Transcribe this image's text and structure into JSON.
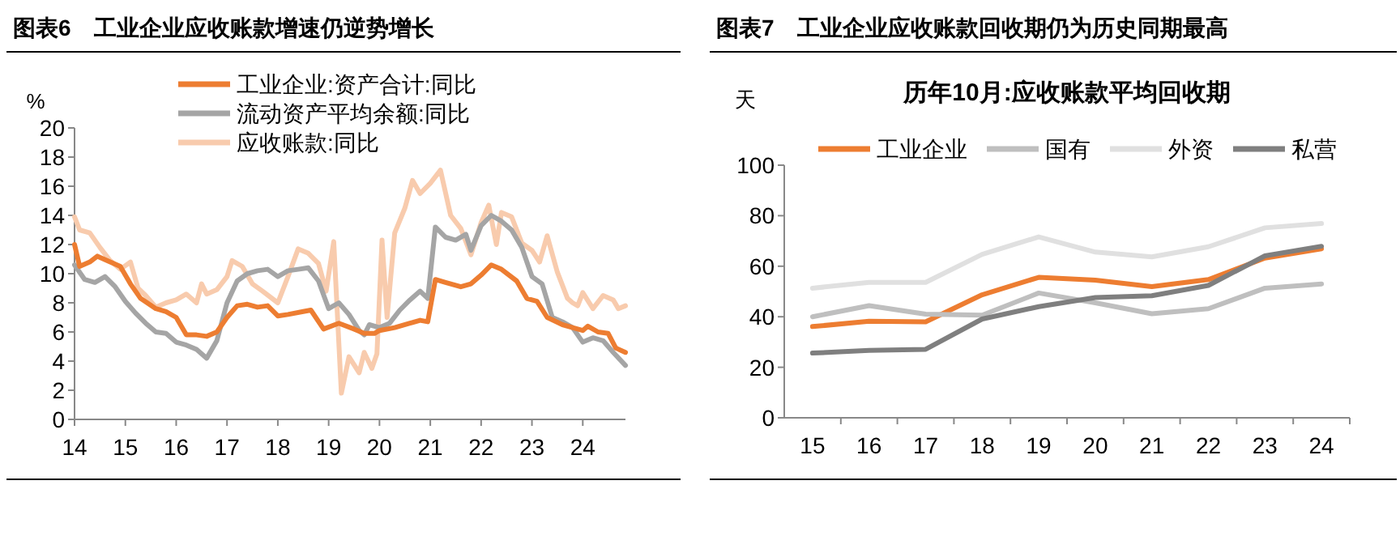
{
  "chart_data": [
    {
      "type": "line",
      "title": "图表6　工业企业应收账款增速仍逆势增长",
      "ylabel": "%",
      "legend": "top",
      "grid": false,
      "xlim": [
        14,
        24.84
      ],
      "xticks": [
        14,
        15,
        16,
        17,
        18,
        19,
        20,
        21,
        22,
        23,
        24
      ],
      "ylim": [
        0,
        20
      ],
      "yticks": [
        0,
        2,
        4,
        6,
        8,
        10,
        12,
        14,
        16,
        18,
        20
      ],
      "series": [
        {
          "name": "工业企业:资产合计:同比",
          "color": "#ed7d31",
          "x": [
            14.0,
            14.1,
            14.3,
            14.45,
            14.7,
            14.9,
            15.1,
            15.3,
            15.6,
            15.8,
            16.0,
            16.2,
            16.4,
            16.6,
            16.8,
            17.0,
            17.2,
            17.4,
            17.6,
            17.8,
            18.0,
            18.2,
            18.5,
            18.65,
            18.9,
            19.2,
            19.5,
            19.7,
            19.9,
            20.0,
            20.3,
            20.6,
            20.8,
            20.95,
            21.1,
            21.3,
            21.6,
            21.8,
            22.0,
            22.2,
            22.4,
            22.7,
            22.9,
            23.1,
            23.3,
            23.6,
            23.8,
            24.0,
            24.1,
            24.3,
            24.5,
            24.65,
            24.84
          ],
          "values": [
            12,
            10.5,
            10.8,
            11.2,
            10.8,
            10.5,
            9.3,
            8.3,
            7.6,
            7.4,
            7.0,
            5.8,
            5.8,
            5.7,
            6.0,
            7.0,
            7.8,
            7.9,
            7.7,
            7.8,
            7.1,
            7.2,
            7.4,
            7.5,
            6.2,
            6.6,
            6.2,
            5.9,
            5.9,
            6.1,
            6.3,
            6.6,
            6.8,
            6.7,
            9.6,
            9.4,
            9.1,
            9.3,
            9.9,
            10.6,
            10.3,
            9.5,
            8.3,
            8.1,
            7.0,
            6.5,
            6.3,
            6.1,
            6.4,
            6.0,
            5.9,
            4.9,
            4.6
          ]
        },
        {
          "name": "流动资产平均余额:同比",
          "color": "#a5a5a5",
          "x": [
            14.0,
            14.2,
            14.4,
            14.6,
            14.8,
            15.0,
            15.2,
            15.4,
            15.6,
            15.8,
            16.0,
            16.2,
            16.4,
            16.6,
            16.8,
            17.0,
            17.2,
            17.4,
            17.6,
            17.8,
            18.0,
            18.2,
            18.4,
            18.6,
            18.8,
            19.0,
            19.2,
            19.4,
            19.6,
            19.7,
            19.8,
            20.0,
            20.2,
            20.4,
            20.6,
            20.8,
            20.95,
            21.1,
            21.3,
            21.5,
            21.7,
            21.8,
            22.0,
            22.2,
            22.4,
            22.6,
            22.8,
            23.0,
            23.2,
            23.4,
            23.6,
            23.8,
            24.0,
            24.2,
            24.4,
            24.6,
            24.84
          ],
          "values": [
            10.6,
            9.6,
            9.4,
            9.8,
            9.1,
            8.1,
            7.3,
            6.6,
            6.0,
            5.9,
            5.3,
            5.1,
            4.8,
            4.2,
            5.4,
            8.0,
            9.5,
            10.0,
            10.2,
            10.3,
            9.8,
            10.2,
            10.3,
            10.4,
            9.5,
            7.6,
            8.0,
            7.2,
            6.1,
            5.8,
            6.5,
            6.3,
            6.6,
            7.5,
            8.2,
            8.8,
            8.3,
            13.2,
            12.5,
            12.3,
            12.7,
            11.6,
            13.3,
            14.0,
            13.6,
            13.0,
            11.8,
            9.8,
            9.3,
            7.0,
            6.7,
            6.3,
            5.3,
            5.6,
            5.4,
            4.6,
            3.7
          ]
        },
        {
          "name": "应收账款:同比",
          "color": "#f8cbad",
          "x": [
            14.0,
            14.1,
            14.3,
            14.5,
            14.7,
            14.9,
            15.1,
            15.25,
            15.4,
            15.6,
            15.8,
            16.0,
            16.2,
            16.4,
            16.5,
            16.6,
            16.8,
            17.0,
            17.1,
            17.3,
            17.5,
            17.7,
            18.0,
            18.2,
            18.4,
            18.6,
            18.8,
            18.95,
            19.1,
            19.25,
            19.4,
            19.6,
            19.7,
            19.85,
            19.95,
            20.05,
            20.15,
            20.3,
            20.5,
            20.65,
            20.8,
            21.0,
            21.2,
            21.4,
            21.6,
            21.8,
            22.0,
            22.15,
            22.3,
            22.4,
            22.6,
            22.8,
            23.0,
            23.15,
            23.3,
            23.5,
            23.7,
            23.8,
            23.9,
            24.0,
            24.2,
            24.4,
            24.6,
            24.7,
            24.84
          ],
          "values": [
            13.9,
            13.0,
            12.8,
            11.8,
            10.9,
            10.3,
            10.8,
            9.0,
            8.5,
            7.7,
            8.0,
            8.2,
            8.6,
            8.0,
            9.3,
            8.6,
            8.9,
            9.8,
            10.9,
            10.5,
            9.3,
            8.8,
            8.0,
            9.8,
            11.7,
            11.4,
            10.7,
            8.8,
            12.2,
            1.8,
            4.3,
            3.2,
            4.6,
            3.5,
            4.5,
            12.3,
            7.0,
            12.8,
            14.5,
            16.4,
            15.5,
            16.2,
            17.1,
            14.0,
            13.1,
            11.3,
            13.5,
            14.7,
            12.0,
            14.2,
            13.9,
            12.1,
            11.6,
            10.8,
            12.6,
            10.1,
            8.3,
            8.0,
            7.8,
            8.7,
            7.6,
            8.5,
            8.2,
            7.6,
            7.8
          ]
        }
      ]
    },
    {
      "type": "line",
      "title": "图表7　工业企业应收账款回收期仍为历史同期最高",
      "subtitle": "历年10月:应收账款平均回收期",
      "ylabel": "天",
      "legend": "top",
      "grid": false,
      "categories": [
        "15",
        "16",
        "17",
        "18",
        "19",
        "20",
        "21",
        "22",
        "23",
        "24"
      ],
      "ylim": [
        0,
        100
      ],
      "yticks": [
        0,
        20,
        40,
        60,
        80,
        100
      ],
      "series": [
        {
          "name": "工业企业",
          "color": "#ed7d31",
          "values": [
            36.1,
            38.2,
            38,
            48.7,
            55.6,
            54.5,
            51.9,
            54.7,
            63.2,
            66.9
          ]
        },
        {
          "name": "国有",
          "color": "#bfbfbf",
          "values": [
            40,
            44.4,
            41,
            40.6,
            49.4,
            45.5,
            41.2,
            43.2,
            51.3,
            53
          ]
        },
        {
          "name": "外资",
          "color": "#e0e0e0",
          "values": [
            51.3,
            53.6,
            53.6,
            64.7,
            71.6,
            65.6,
            63.7,
            67.7,
            75.2,
            76.9
          ]
        },
        {
          "name": "私营",
          "color": "#7f7f7f",
          "values": [
            25.6,
            26.7,
            27.1,
            39.1,
            44,
            47.6,
            48.3,
            52.4,
            64.1,
            67.9
          ]
        }
      ]
    }
  ]
}
